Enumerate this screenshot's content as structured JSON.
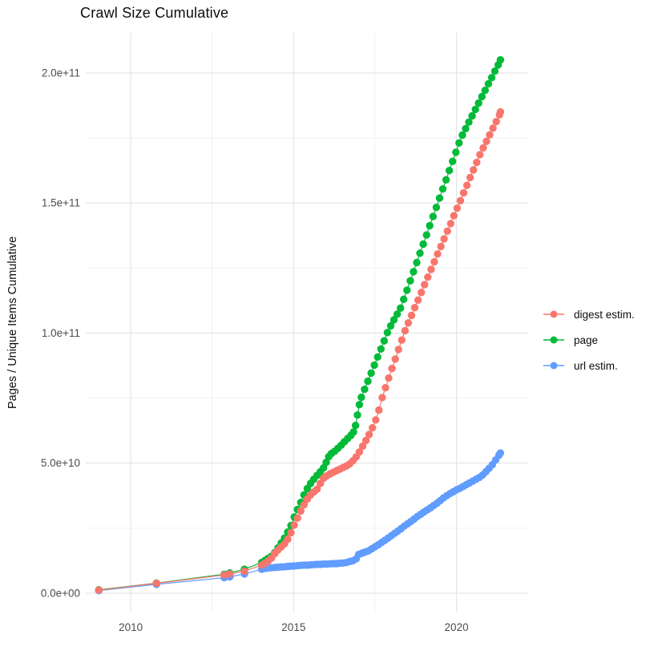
{
  "chart_data": {
    "type": "line",
    "marker": "point",
    "title": "Crawl Size Cumulative",
    "xlabel": "",
    "ylabel": "Pages / Unique Items Cumulative",
    "value_scale": "point values are in units of 1e9 (billions)",
    "xlim": [
      2008.62,
      2022.2
    ],
    "ylim_e9": [
      -7.1,
      215.4
    ],
    "grid": "on",
    "legend_position": "right",
    "x_ticks": [
      {
        "value": 2010,
        "label": "2010"
      },
      {
        "value": 2015,
        "label": "2015"
      },
      {
        "value": 2020,
        "label": "2020"
      }
    ],
    "x_minor_ticks": [
      2012.5,
      2017.5
    ],
    "y_ticks": [
      {
        "value_e9": 0,
        "label": "0.0e+00"
      },
      {
        "value_e9": 50,
        "label": "5.0e+10"
      },
      {
        "value_e9": 100,
        "label": "1.0e+11"
      },
      {
        "value_e9": 150,
        "label": "1.5e+11"
      },
      {
        "value_e9": 200,
        "label": "2.0e+11"
      }
    ],
    "y_minor_ticks_e9": [
      25,
      75,
      125,
      175
    ],
    "colors": {
      "major_grid": "#e5e5e5",
      "minor_grid": "#f2f2f2",
      "tick_text": "#4d4d4d",
      "title_text": "#0d0d0d"
    },
    "draw_order": [
      2,
      1,
      0
    ],
    "series": [
      {
        "name": "digest estim.",
        "color": "#F8766D",
        "points": [
          [
            2009.02,
            1.2
          ],
          [
            2010.79,
            3.8
          ],
          [
            2012.87,
            7.0
          ],
          [
            2013.04,
            7.4
          ],
          [
            2013.49,
            8.5
          ],
          [
            2014.02,
            10.8
          ],
          [
            2014.12,
            11.5
          ],
          [
            2014.22,
            12.4
          ],
          [
            2014.32,
            13.5
          ],
          [
            2014.42,
            15.2
          ],
          [
            2014.52,
            16.6
          ],
          [
            2014.62,
            17.8
          ],
          [
            2014.72,
            19.0
          ],
          [
            2014.82,
            20.8
          ],
          [
            2014.92,
            23.3
          ],
          [
            2015.02,
            26.2
          ],
          [
            2015.12,
            28.9
          ],
          [
            2015.22,
            31.6
          ],
          [
            2015.32,
            34.0
          ],
          [
            2015.42,
            36.2
          ],
          [
            2015.52,
            37.8
          ],
          [
            2015.62,
            38.9
          ],
          [
            2015.72,
            40.0
          ],
          [
            2015.82,
            42.2
          ],
          [
            2015.92,
            44.2
          ],
          [
            2016.02,
            45.1
          ],
          [
            2016.12,
            45.9
          ],
          [
            2016.22,
            46.5
          ],
          [
            2016.32,
            47.1
          ],
          [
            2016.42,
            47.7
          ],
          [
            2016.52,
            48.3
          ],
          [
            2016.62,
            48.9
          ],
          [
            2016.72,
            49.7
          ],
          [
            2016.82,
            50.9
          ],
          [
            2016.92,
            52.4
          ],
          [
            2017.02,
            54.3
          ],
          [
            2017.12,
            56.5
          ],
          [
            2017.22,
            58.7
          ],
          [
            2017.32,
            61.0
          ],
          [
            2017.42,
            63.6
          ],
          [
            2017.52,
            66.6
          ],
          [
            2017.62,
            70.4
          ],
          [
            2017.72,
            75.2
          ],
          [
            2017.82,
            79.0
          ],
          [
            2017.92,
            82.7
          ],
          [
            2018.02,
            86.4
          ],
          [
            2018.12,
            90.0
          ],
          [
            2018.22,
            93.7
          ],
          [
            2018.32,
            97.3
          ],
          [
            2018.42,
            100.9
          ],
          [
            2018.52,
            103.9
          ],
          [
            2018.62,
            106.8
          ],
          [
            2018.72,
            109.8
          ],
          [
            2018.82,
            112.7
          ],
          [
            2018.92,
            115.6
          ],
          [
            2019.02,
            118.6
          ],
          [
            2019.12,
            121.5
          ],
          [
            2019.22,
            124.5
          ],
          [
            2019.32,
            127.4
          ],
          [
            2019.42,
            130.4
          ],
          [
            2019.52,
            133.3
          ],
          [
            2019.62,
            136.2
          ],
          [
            2019.72,
            139.2
          ],
          [
            2019.82,
            142.1
          ],
          [
            2019.92,
            145.1
          ],
          [
            2020.02,
            148.0
          ],
          [
            2020.12,
            150.9
          ],
          [
            2020.22,
            153.9
          ],
          [
            2020.32,
            156.8
          ],
          [
            2020.42,
            159.8
          ],
          [
            2020.52,
            162.7
          ],
          [
            2020.62,
            165.6
          ],
          [
            2020.72,
            168.6
          ],
          [
            2020.82,
            171.2
          ],
          [
            2020.92,
            173.7
          ],
          [
            2021.02,
            176.2
          ],
          [
            2021.12,
            178.8
          ],
          [
            2021.22,
            181.3
          ],
          [
            2021.32,
            183.9
          ],
          [
            2021.35,
            185.0
          ]
        ]
      },
      {
        "name": "page",
        "color": "#00BA38",
        "points": [
          [
            2009.02,
            1.3
          ],
          [
            2010.79,
            3.9
          ],
          [
            2012.87,
            7.3
          ],
          [
            2013.04,
            7.8
          ],
          [
            2013.49,
            9.2
          ],
          [
            2014.02,
            11.8
          ],
          [
            2014.12,
            12.6
          ],
          [
            2014.22,
            13.4
          ],
          [
            2014.32,
            14.2
          ],
          [
            2014.42,
            15.6
          ],
          [
            2014.52,
            17.4
          ],
          [
            2014.62,
            19.3
          ],
          [
            2014.72,
            21.2
          ],
          [
            2014.82,
            23.5
          ],
          [
            2014.92,
            26.0
          ],
          [
            2015.02,
            29.3
          ],
          [
            2015.12,
            32.2
          ],
          [
            2015.22,
            34.9
          ],
          [
            2015.32,
            37.8
          ],
          [
            2015.42,
            40.2
          ],
          [
            2015.52,
            42.2
          ],
          [
            2015.62,
            43.8
          ],
          [
            2015.72,
            45.3
          ],
          [
            2015.82,
            46.7
          ],
          [
            2015.92,
            48.2
          ],
          [
            2016.0,
            50.3
          ],
          [
            2016.08,
            52.5
          ],
          [
            2016.16,
            53.7
          ],
          [
            2016.26,
            54.6
          ],
          [
            2016.36,
            55.7
          ],
          [
            2016.46,
            56.9
          ],
          [
            2016.56,
            58.2
          ],
          [
            2016.66,
            59.5
          ],
          [
            2016.76,
            60.7
          ],
          [
            2016.84,
            62.0
          ],
          [
            2016.9,
            64.5
          ],
          [
            2016.96,
            68.5
          ],
          [
            2017.02,
            72.5
          ],
          [
            2017.08,
            75.3
          ],
          [
            2017.18,
            78.4
          ],
          [
            2017.28,
            81.5
          ],
          [
            2017.38,
            84.6
          ],
          [
            2017.48,
            87.7
          ],
          [
            2017.58,
            90.8
          ],
          [
            2017.68,
            93.9
          ],
          [
            2017.78,
            97.0
          ],
          [
            2017.88,
            100.2
          ],
          [
            2017.98,
            102.8
          ],
          [
            2018.08,
            105.1
          ],
          [
            2018.18,
            107.3
          ],
          [
            2018.28,
            109.6
          ],
          [
            2018.38,
            113.0
          ],
          [
            2018.48,
            116.5
          ],
          [
            2018.58,
            120.1
          ],
          [
            2018.68,
            123.6
          ],
          [
            2018.78,
            127.1
          ],
          [
            2018.88,
            130.7
          ],
          [
            2018.98,
            134.2
          ],
          [
            2019.08,
            137.7
          ],
          [
            2019.18,
            141.3
          ],
          [
            2019.28,
            144.8
          ],
          [
            2019.38,
            148.3
          ],
          [
            2019.48,
            151.9
          ],
          [
            2019.58,
            155.4
          ],
          [
            2019.68,
            158.9
          ],
          [
            2019.78,
            162.5
          ],
          [
            2019.88,
            166.0
          ],
          [
            2019.98,
            169.5
          ],
          [
            2020.08,
            173.1
          ],
          [
            2020.18,
            176.1
          ],
          [
            2020.28,
            178.6
          ],
          [
            2020.38,
            181.1
          ],
          [
            2020.48,
            183.5
          ],
          [
            2020.58,
            186.0
          ],
          [
            2020.68,
            188.4
          ],
          [
            2020.78,
            190.9
          ],
          [
            2020.88,
            193.3
          ],
          [
            2020.98,
            195.8
          ],
          [
            2021.08,
            198.2
          ],
          [
            2021.18,
            200.7
          ],
          [
            2021.28,
            203.1
          ],
          [
            2021.35,
            205.0
          ]
        ]
      },
      {
        "name": "url estim.",
        "color": "#619CFF",
        "points": [
          [
            2009.02,
            1.0
          ],
          [
            2010.79,
            3.4
          ],
          [
            2012.87,
            6.0
          ],
          [
            2013.04,
            6.3
          ],
          [
            2013.49,
            7.4
          ],
          [
            2014.02,
            9.2
          ],
          [
            2014.12,
            9.5
          ],
          [
            2014.22,
            9.7
          ],
          [
            2014.32,
            9.8
          ],
          [
            2014.42,
            9.9
          ],
          [
            2014.52,
            10.0
          ],
          [
            2014.62,
            10.1
          ],
          [
            2014.72,
            10.2
          ],
          [
            2014.82,
            10.3
          ],
          [
            2014.92,
            10.4
          ],
          [
            2015.02,
            10.5
          ],
          [
            2015.12,
            10.6
          ],
          [
            2015.22,
            10.7
          ],
          [
            2015.32,
            10.8
          ],
          [
            2015.42,
            10.8
          ],
          [
            2015.52,
            10.9
          ],
          [
            2015.62,
            11.0
          ],
          [
            2015.72,
            11.1
          ],
          [
            2015.82,
            11.1
          ],
          [
            2015.92,
            11.2
          ],
          [
            2016.02,
            11.2
          ],
          [
            2016.12,
            11.3
          ],
          [
            2016.22,
            11.4
          ],
          [
            2016.32,
            11.4
          ],
          [
            2016.42,
            11.5
          ],
          [
            2016.52,
            11.6
          ],
          [
            2016.62,
            11.8
          ],
          [
            2016.72,
            12.2
          ],
          [
            2016.82,
            12.5
          ],
          [
            2016.92,
            13.2
          ],
          [
            2017.0,
            14.9
          ],
          [
            2017.1,
            15.4
          ],
          [
            2017.2,
            15.9
          ],
          [
            2017.3,
            16.3
          ],
          [
            2017.4,
            17.1
          ],
          [
            2017.5,
            17.9
          ],
          [
            2017.6,
            18.6
          ],
          [
            2017.7,
            19.5
          ],
          [
            2017.8,
            20.3
          ],
          [
            2017.9,
            21.2
          ],
          [
            2018.0,
            22.1
          ],
          [
            2018.1,
            23.0
          ],
          [
            2018.2,
            23.9
          ],
          [
            2018.3,
            24.8
          ],
          [
            2018.4,
            25.8
          ],
          [
            2018.5,
            26.7
          ],
          [
            2018.6,
            27.6
          ],
          [
            2018.7,
            28.5
          ],
          [
            2018.8,
            29.5
          ],
          [
            2018.9,
            30.3
          ],
          [
            2019.0,
            31.2
          ],
          [
            2019.1,
            32.0
          ],
          [
            2019.2,
            32.8
          ],
          [
            2019.3,
            33.7
          ],
          [
            2019.4,
            34.6
          ],
          [
            2019.5,
            35.6
          ],
          [
            2019.6,
            36.6
          ],
          [
            2019.7,
            37.5
          ],
          [
            2019.8,
            38.3
          ],
          [
            2019.9,
            39.0
          ],
          [
            2020.0,
            39.7
          ],
          [
            2020.1,
            40.3
          ],
          [
            2020.2,
            41.0
          ],
          [
            2020.3,
            41.7
          ],
          [
            2020.4,
            42.4
          ],
          [
            2020.5,
            43.1
          ],
          [
            2020.6,
            43.8
          ],
          [
            2020.7,
            44.5
          ],
          [
            2020.8,
            45.4
          ],
          [
            2020.9,
            46.7
          ],
          [
            2021.0,
            48.0
          ],
          [
            2021.1,
            49.4
          ],
          [
            2021.2,
            51.2
          ],
          [
            2021.3,
            53.0
          ],
          [
            2021.35,
            53.9
          ]
        ]
      }
    ],
    "legend": [
      {
        "name": "digest estim.",
        "color": "#F8766D"
      },
      {
        "name": "page",
        "color": "#00BA38"
      },
      {
        "name": "url estim.",
        "color": "#619CFF"
      }
    ]
  }
}
